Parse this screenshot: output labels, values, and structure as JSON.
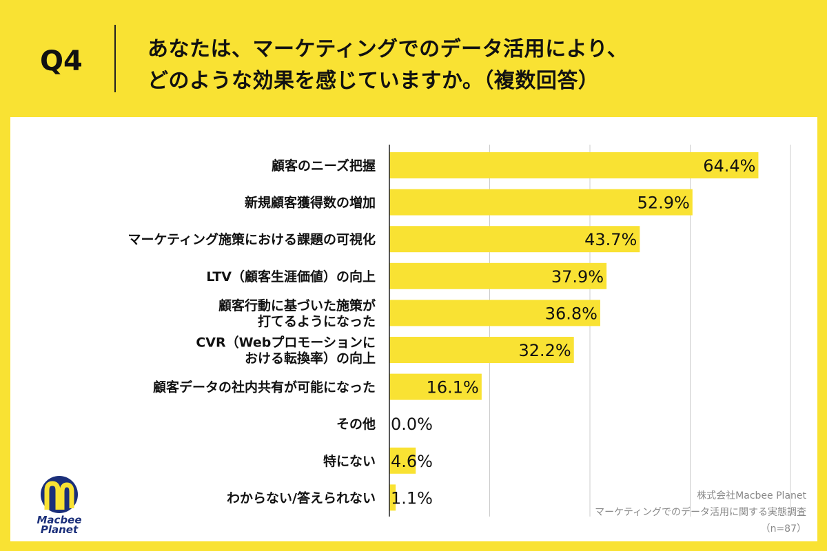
{
  "header": {
    "question": "Q4",
    "title_lines": [
      "あなたは、マーケティングでのデータ活用により、",
      "どのような効果を感じていますか。（複数回答）"
    ]
  },
  "colors": {
    "background": "#F9E233",
    "bar": "#F9E233",
    "panel": "#FFFFFF",
    "logo_blue": "#1B2F7A"
  },
  "chart_data": {
    "type": "bar",
    "orientation": "horizontal",
    "categories": [
      [
        "顧客のニーズ把握"
      ],
      [
        "新規顧客獲得数の増加"
      ],
      [
        "マーケティング施策における課題の可視化"
      ],
      [
        "LTV（顧客生涯価値）の向上"
      ],
      [
        "顧客行動に基づいた施策が",
        "打てるようになった"
      ],
      [
        "CVR（Webプロモーションに",
        "おける転換率）の向上"
      ],
      [
        "顧客データの社内共有が可能になった"
      ],
      [
        "その他"
      ],
      [
        "特にない"
      ],
      [
        "わからない/答えられない"
      ]
    ],
    "values": [
      64.4,
      52.9,
      43.7,
      37.9,
      36.8,
      32.2,
      16.1,
      0.0,
      4.6,
      1.1
    ],
    "value_labels": [
      "64.4%",
      "52.9%",
      "43.7%",
      "37.9%",
      "36.8%",
      "32.2%",
      "16.1%",
      "0.0%",
      "4.6%",
      "1.1%"
    ],
    "xlim": [
      0,
      70
    ],
    "grid_step": 17.5,
    "grid": true,
    "unit": "%"
  },
  "footer": {
    "company": "株式会社Macbee Planet",
    "survey": "マーケティングでのデータ活用に関する実態調査",
    "sample": "（n=87）"
  },
  "logo": {
    "text": "Macbee Planet"
  }
}
